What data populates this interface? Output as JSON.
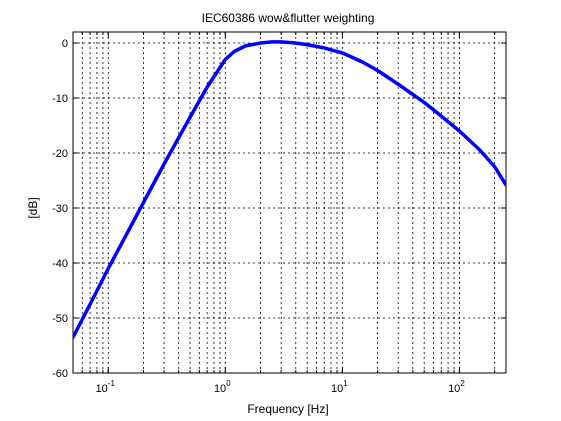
{
  "chart_data": {
    "type": "line",
    "title": "IEC60386 wow&flutter weighting",
    "xlabel": "Frequency [Hz]",
    "ylabel": "[dB]",
    "x_scale": "log",
    "xlim": [
      0.05,
      250
    ],
    "ylim": [
      -60,
      2
    ],
    "grid": true,
    "x_ticks": [
      {
        "value": 0.1,
        "base": "10",
        "exp": "-1"
      },
      {
        "value": 1,
        "base": "10",
        "exp": "0"
      },
      {
        "value": 10,
        "base": "10",
        "exp": "1"
      },
      {
        "value": 100,
        "base": "10",
        "exp": "2"
      }
    ],
    "y_ticks": [
      {
        "value": 0,
        "label": "0"
      },
      {
        "value": -10,
        "label": "-10"
      },
      {
        "value": -20,
        "label": "-20"
      },
      {
        "value": -30,
        "label": "-30"
      },
      {
        "value": -40,
        "label": "-40"
      },
      {
        "value": -50,
        "label": "-50"
      },
      {
        "value": -60,
        "label": "-60"
      }
    ],
    "series": [
      {
        "color": "#0000ff",
        "x": [
          0.05,
          0.07,
          0.1,
          0.15,
          0.2,
          0.3,
          0.5,
          0.7,
          1.0,
          1.2,
          1.5,
          2.0,
          2.5,
          3.0,
          3.5,
          4.0,
          5.0,
          7.0,
          10,
          15,
          20,
          30,
          50,
          70,
          100,
          150,
          200,
          250
        ],
        "y": [
          -53.5,
          -47.5,
          -41.0,
          -34.0,
          -29.0,
          -22.0,
          -13.5,
          -8.0,
          -3.0,
          -1.5,
          -0.5,
          0.0,
          0.2,
          0.2,
          0.1,
          0.0,
          -0.3,
          -0.9,
          -1.8,
          -3.5,
          -5.0,
          -7.5,
          -10.8,
          -13.3,
          -16.0,
          -19.5,
          -22.5,
          -25.8
        ]
      }
    ]
  }
}
